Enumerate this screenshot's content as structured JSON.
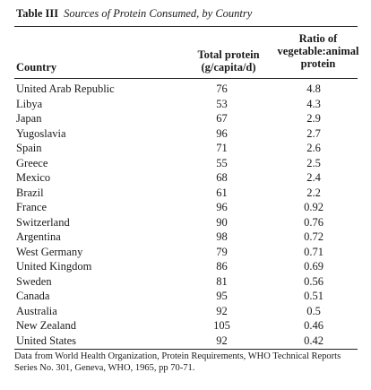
{
  "caption": {
    "label": "Table III",
    "title": "Sources of Protein Consumed, by Country"
  },
  "headers": {
    "country": "Country",
    "total_line1": "Total protein",
    "total_line2": "(g/capita/d)",
    "ratio_line1": "Ratio of",
    "ratio_line2": "vegetable:animal",
    "ratio_line3": "protein"
  },
  "rows": [
    {
      "country": "United Arab Republic",
      "total": "76",
      "ratio": "4.8"
    },
    {
      "country": "Libya",
      "total": "53",
      "ratio": "4.3"
    },
    {
      "country": "Japan",
      "total": "67",
      "ratio": "2.9"
    },
    {
      "country": "Yugoslavia",
      "total": "96",
      "ratio": "2.7"
    },
    {
      "country": "Spain",
      "total": "71",
      "ratio": "2.6"
    },
    {
      "country": "Greece",
      "total": "55",
      "ratio": "2.5"
    },
    {
      "country": "Mexico",
      "total": "68",
      "ratio": "2.4"
    },
    {
      "country": "Brazil",
      "total": "61",
      "ratio": "2.2"
    },
    {
      "country": "France",
      "total": "96",
      "ratio": "0.92"
    },
    {
      "country": "Switzerland",
      "total": "90",
      "ratio": "0.76"
    },
    {
      "country": "Argentina",
      "total": "98",
      "ratio": "0.72"
    },
    {
      "country": "West Germany",
      "total": "79",
      "ratio": "0.71"
    },
    {
      "country": "United Kingdom",
      "total": "86",
      "ratio": "0.69"
    },
    {
      "country": "Sweden",
      "total": "81",
      "ratio": "0.56"
    },
    {
      "country": "Canada",
      "total": "95",
      "ratio": "0.51"
    },
    {
      "country": "Australia",
      "total": "92",
      "ratio": "0.5"
    },
    {
      "country": "New Zealand",
      "total": "105",
      "ratio": "0.46"
    },
    {
      "country": "United States",
      "total": "92",
      "ratio": "0.42"
    }
  ],
  "source_note": "Data from World Health Organization, Protein Requirements, WHO Technical Reports Series No. 301, Geneva, WHO, 1965, pp 70-71."
}
